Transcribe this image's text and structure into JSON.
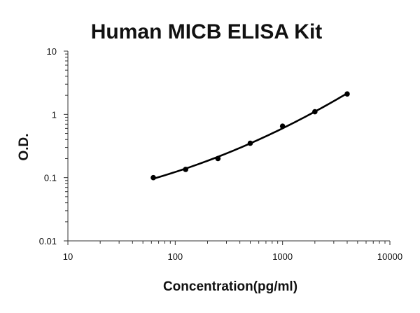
{
  "chart_data": {
    "type": "scatter",
    "title": "Human MICB ELISA Kit",
    "xlabel": "Concentration(pg/ml)",
    "ylabel": "O.D.",
    "x_scale": "log",
    "y_scale": "log",
    "xlim": [
      10,
      10000
    ],
    "ylim": [
      0.01,
      10
    ],
    "x_ticks": [
      "10",
      "100",
      "1000",
      "10000"
    ],
    "y_ticks": [
      "0.01",
      "0.1",
      "1",
      "10"
    ],
    "grid": false,
    "series": [
      {
        "x": [
          62.5,
          125,
          250,
          500,
          1000,
          2000,
          4000
        ],
        "y": [
          0.1,
          0.135,
          0.2,
          0.35,
          0.65,
          1.1,
          2.1
        ]
      }
    ],
    "fit_line": true,
    "colors": {
      "line": "#000000",
      "marker": "#000000",
      "axis": "#333333"
    }
  }
}
